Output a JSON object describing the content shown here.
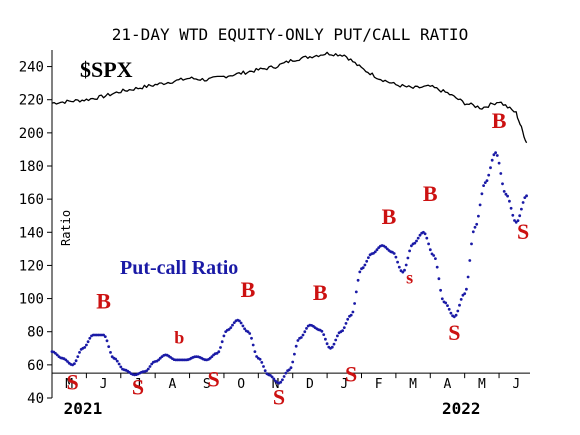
{
  "chart_data": {
    "type": "line",
    "title": "21-DAY WTD EQUITY-ONLY PUT/CALL RATIO",
    "ylabel": "Ratio",
    "ylim": [
      40,
      250
    ],
    "yticks": [
      40,
      60,
      80,
      100,
      120,
      140,
      160,
      180,
      200,
      220,
      240
    ],
    "x_month_labels": [
      "M",
      "J",
      "J",
      "A",
      "S",
      "O",
      "N",
      "D",
      "J",
      "F",
      "M",
      "A",
      "M",
      "J"
    ],
    "year_labels": [
      "2021",
      "2022"
    ],
    "colors": {
      "spx": "#000000",
      "ratio": "#1a1aa6",
      "signal": "#cc1111"
    },
    "series": [
      {
        "name": "$SPX",
        "x": [
          0,
          0.5,
          1,
          1.5,
          2,
          2.5,
          3,
          3.5,
          4,
          4.5,
          5,
          5.5,
          6,
          6.5,
          7,
          7.5,
          8,
          8.5,
          9,
          9.5,
          10,
          10.5,
          11,
          11.5,
          12,
          12.5,
          13,
          13.5,
          13.8
        ],
        "values": [
          218,
          219,
          220,
          222,
          225,
          227,
          229,
          231,
          233,
          232,
          234,
          236,
          238,
          240,
          244,
          246,
          248,
          247,
          239,
          233,
          229,
          227,
          228,
          224,
          218,
          215,
          219,
          212,
          194
        ]
      },
      {
        "name": "Put-call Ratio",
        "x": [
          0,
          0.3,
          0.6,
          0.9,
          1.2,
          1.5,
          1.8,
          2.1,
          2.4,
          2.7,
          3,
          3.3,
          3.6,
          3.9,
          4.2,
          4.5,
          4.8,
          5.1,
          5.4,
          5.7,
          6,
          6.3,
          6.6,
          6.9,
          7.2,
          7.5,
          7.8,
          8.1,
          8.4,
          8.7,
          9,
          9.3,
          9.6,
          9.9,
          10.2,
          10.5,
          10.8,
          11.1,
          11.4,
          11.7,
          12,
          12.3,
          12.6,
          12.9,
          13.2,
          13.5,
          13.8
        ],
        "values": [
          68,
          64,
          60,
          70,
          78,
          78,
          64,
          57,
          54,
          56,
          62,
          66,
          63,
          63,
          65,
          63,
          67,
          81,
          87,
          80,
          64,
          54,
          49,
          57,
          76,
          84,
          81,
          70,
          80,
          90,
          118,
          127,
          132,
          128,
          116,
          133,
          140,
          126,
          98,
          89,
          103,
          143,
          170,
          188,
          163,
          146,
          162
        ]
      }
    ],
    "annotations": [
      {
        "text": "S",
        "x": 0.6,
        "y": 45
      },
      {
        "text": "B",
        "x": 1.5,
        "y": 94
      },
      {
        "text": "S",
        "x": 2.5,
        "y": 42
      },
      {
        "text": "b",
        "x": 3.7,
        "y": 73
      },
      {
        "text": "S",
        "x": 4.7,
        "y": 47
      },
      {
        "text": "B",
        "x": 5.7,
        "y": 101
      },
      {
        "text": "S",
        "x": 6.6,
        "y": 36
      },
      {
        "text": "B",
        "x": 7.8,
        "y": 99
      },
      {
        "text": "S",
        "x": 8.7,
        "y": 50
      },
      {
        "text": "B",
        "x": 9.8,
        "y": 145
      },
      {
        "text": "s",
        "x": 10.4,
        "y": 109
      },
      {
        "text": "B",
        "x": 11.0,
        "y": 159
      },
      {
        "text": "S",
        "x": 11.7,
        "y": 75
      },
      {
        "text": "B",
        "x": 13.0,
        "y": 203
      },
      {
        "text": "S",
        "x": 13.7,
        "y": 136
      }
    ]
  }
}
